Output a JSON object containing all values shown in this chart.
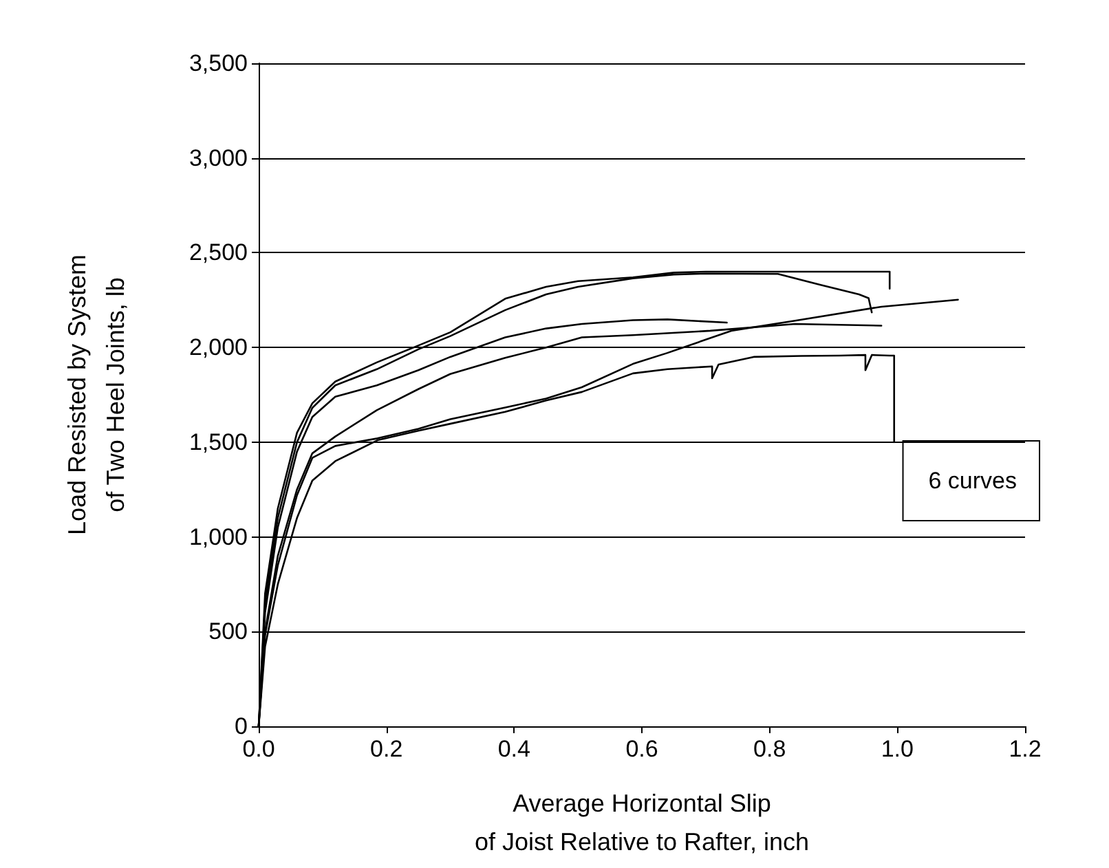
{
  "chart_data": {
    "type": "line",
    "xlabel": "Average Horizontal Slip\nof Joist Relative to Rafter, inch",
    "ylabel": "Load Resisted by System\nof Two Heel Joints, lb",
    "annotations": [
      "6 curves"
    ],
    "xlim": [
      0,
      1.2
    ],
    "xticks": [
      {
        "value": 0,
        "label": "0.0"
      },
      {
        "value": 0.2,
        "label": "0.2"
      },
      {
        "value": 0.4,
        "label": "0.4"
      },
      {
        "value": 0.6,
        "label": "0.6"
      },
      {
        "value": 0.8,
        "label": "0.8"
      },
      {
        "value": 1,
        "label": "1.0"
      },
      {
        "value": 1.2,
        "label": "1.2"
      }
    ],
    "ylim": [
      0,
      3500
    ],
    "yticks": [
      0,
      500,
      {
        "value": 1000,
        "label": "1,000"
      },
      {
        "value": 1500,
        "label": "1,500"
      },
      {
        "value": 2000,
        "label": "2,000"
      },
      {
        "value": 2500,
        "label": "2,500"
      },
      {
        "value": 3000,
        "label": "3,000"
      },
      {
        "value": 3500,
        "label": "3,500"
      }
    ],
    "grid": "y",
    "marker": "none",
    "line_style": "solid",
    "series": [
      {
        "color": "#000000",
        "x": [
          0,
          0.01,
          0.03,
          0.06,
          0.084,
          0.12,
          0.185,
          0.25,
          0.3,
          0.386,
          0.45,
          0.5,
          0.586,
          0.65,
          0.7,
          0.8,
          0.9,
          0.988,
          0.988
        ],
        "values": [
          0,
          700,
          1150,
          1550,
          1705,
          1820,
          1921,
          2010,
          2080,
          2257,
          2320,
          2350,
          2370,
          2395,
          2400,
          2400,
          2400,
          2400,
          2310
        ]
      },
      {
        "color": "#000000",
        "x": [
          0,
          0.01,
          0.03,
          0.06,
          0.084,
          0.12,
          0.185,
          0.25,
          0.3,
          0.386,
          0.45,
          0.5,
          0.586,
          0.65,
          0.7,
          0.813,
          0.88,
          0.94,
          0.955,
          0.96
        ],
        "values": [
          0,
          650,
          1100,
          1500,
          1681,
          1800,
          1885,
          1990,
          2060,
          2197,
          2280,
          2320,
          2365,
          2385,
          2390,
          2388,
          2330,
          2280,
          2260,
          2185
        ]
      },
      {
        "color": "#000000",
        "x": [
          0,
          0.01,
          0.03,
          0.06,
          0.084,
          0.12,
          0.185,
          0.25,
          0.3,
          0.386,
          0.45,
          0.506,
          0.586,
          0.64,
          0.733
        ],
        "values": [
          0,
          600,
          1050,
          1450,
          1633,
          1740,
          1800,
          1880,
          1950,
          2053,
          2100,
          2124,
          2144,
          2148,
          2131
        ]
      },
      {
        "color": "#000000",
        "x": [
          0,
          0.01,
          0.03,
          0.06,
          0.084,
          0.12,
          0.185,
          0.25,
          0.3,
          0.386,
          0.45,
          0.506,
          0.586,
          0.707,
          0.84,
          0.975
        ],
        "values": [
          0,
          500,
          900,
          1250,
          1441,
          1530,
          1669,
          1780,
          1860,
          1945,
          2000,
          2053,
          2065,
          2088,
          2124,
          2115
        ]
      },
      {
        "color": "#000000",
        "x": [
          0,
          0.01,
          0.03,
          0.06,
          0.084,
          0.12,
          0.186,
          0.25,
          0.3,
          0.386,
          0.45,
          0.506,
          0.586,
          0.64,
          0.74,
          0.84,
          0.975,
          1.095
        ],
        "values": [
          0,
          480,
          850,
          1220,
          1417,
          1480,
          1520,
          1570,
          1621,
          1683,
          1730,
          1790,
          1913,
          1971,
          2088,
          2141,
          2215,
          2252
        ]
      },
      {
        "color": "#000000",
        "x": [
          0,
          0.01,
          0.03,
          0.06,
          0.084,
          0.12,
          0.186,
          0.25,
          0.3,
          0.386,
          0.45,
          0.506,
          0.586,
          0.64,
          0.71,
          0.71,
          0.72,
          0.775,
          0.85,
          0.91,
          0.95,
          0.95,
          0.96,
          0.988,
          0.995,
          0.995
        ],
        "values": [
          0,
          420,
          750,
          1100,
          1297,
          1400,
          1510,
          1560,
          1597,
          1660,
          1720,
          1765,
          1863,
          1885,
          1900,
          1837,
          1910,
          1950,
          1955,
          1957,
          1960,
          1880,
          1960,
          1957,
          1957,
          1500
        ]
      }
    ]
  }
}
